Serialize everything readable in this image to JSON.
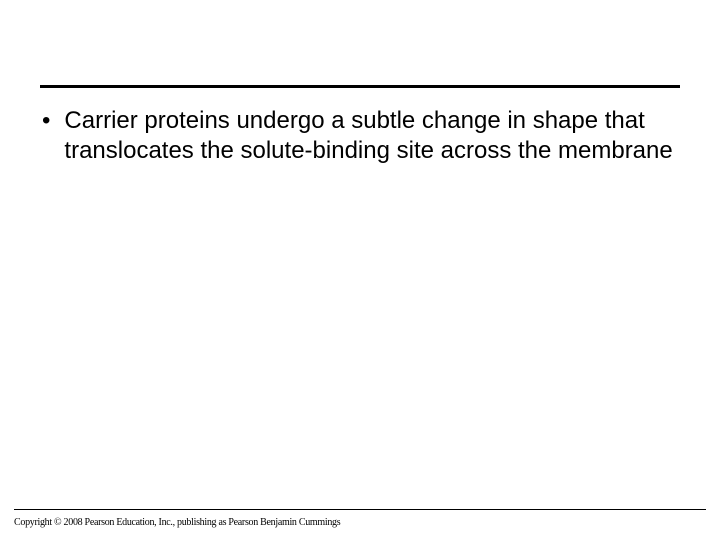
{
  "slide": {
    "bullets": [
      {
        "text": "Carrier proteins undergo a subtle change in shape that translocates the solute-binding site across the membrane"
      }
    ],
    "copyright": "Copyright © 2008 Pearson Education, Inc., publishing as Pearson Benjamin Cummings",
    "colors": {
      "background": "#ffffff",
      "text": "#000000",
      "rule": "#000000"
    },
    "typography": {
      "body_fontsize": 24,
      "body_lineheight": 30,
      "copyright_fontsize": 10
    }
  }
}
